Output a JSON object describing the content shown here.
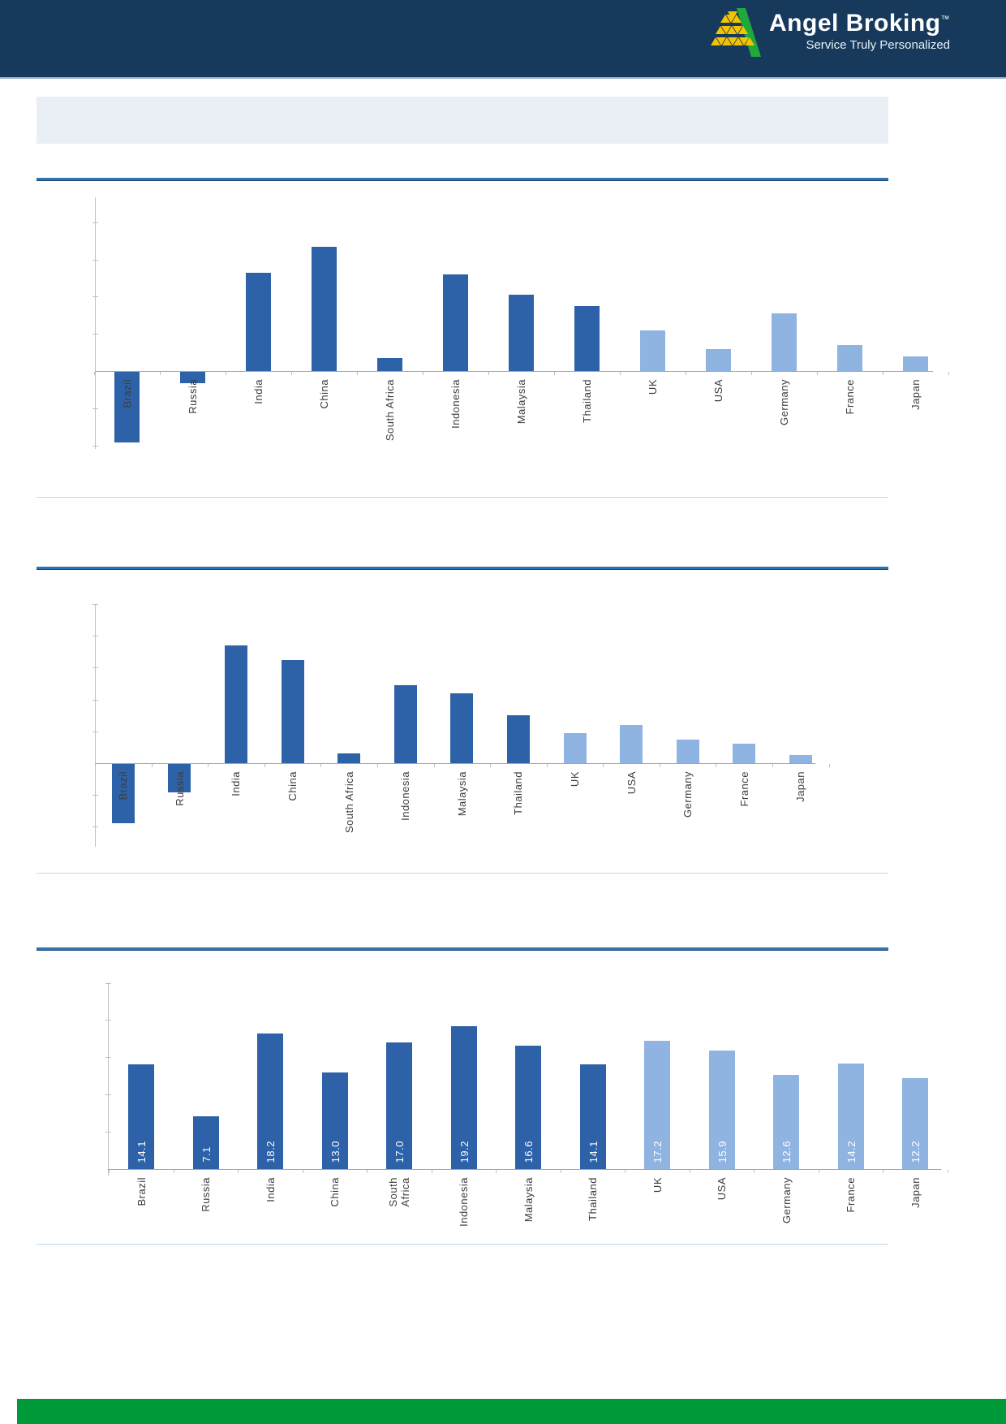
{
  "header": {
    "brand": "Angel Broking",
    "trademark": "™",
    "tagline": "Service Truly Personalized"
  },
  "title_band": {
    "text": ""
  },
  "colors": {
    "header_navy": "#16395C",
    "bar_dark": "#2E62A8",
    "bar_light": "#8FB4E2",
    "rule_blue": "#2E74B5",
    "separator_light": "#BFD7EA",
    "axis_gray": "#BFBFBF",
    "label_gray": "#3D3D3D",
    "value_label": "#FFFFFF",
    "footer_green": "#009A3A",
    "logo_green": "#1FA83D",
    "logo_yellow": "#F5C400",
    "band_fill": "#E9EFF5"
  },
  "chart_data": [
    {
      "type": "bar",
      "title": "",
      "categories": [
        "Brazil",
        "Russia",
        "India",
        "China",
        "South Africa",
        "Indonesia",
        "Malaysia",
        "Thailand",
        "UK",
        "USA",
        "Germany",
        "France",
        "Japan"
      ],
      "values": [
        -3.8,
        -0.6,
        5.3,
        6.7,
        0.7,
        5.2,
        4.1,
        3.5,
        2.2,
        1.2,
        3.1,
        1.4,
        0.8
      ],
      "dark_first_n": 8,
      "ylim": [
        -4.3,
        9.4
      ],
      "gridline_step": 2,
      "y_axis_labels_visible": false,
      "value_labels_visible": false,
      "legend": "none"
    },
    {
      "type": "bar",
      "title": "",
      "categories": [
        "Brazil",
        "Russia",
        "India",
        "China",
        "South Africa",
        "Indonesia",
        "Malaysia",
        "Thailand",
        "UK",
        "USA",
        "Germany",
        "France",
        "Japan"
      ],
      "values": [
        -3.7,
        -1.8,
        7.4,
        6.5,
        0.6,
        4.9,
        4.4,
        3.0,
        1.9,
        2.4,
        1.5,
        1.2,
        0.5
      ],
      "dark_first_n": 8,
      "ylim": [
        -5.3,
        10
      ],
      "gridline_step": 2,
      "y_axis_labels_visible": false,
      "value_labels_visible": false,
      "legend": "none"
    },
    {
      "type": "bar",
      "title": "",
      "categories": [
        "Brazil",
        "Russia",
        "India",
        "China",
        "South Africa",
        "Indonesia",
        "Malaysia",
        "Thailand",
        "UK",
        "USA",
        "Germany",
        "France",
        "Japan"
      ],
      "values": [
        14.1,
        7.1,
        18.2,
        13.0,
        17.0,
        19.2,
        16.6,
        14.1,
        17.2,
        15.9,
        12.6,
        14.2,
        12.2
      ],
      "value_labels": [
        "14.1",
        "7.1",
        "18.2",
        "13.0",
        "17.0",
        "19.2",
        "16.6",
        "14.1",
        "17.2",
        "15.9",
        "12.6",
        "14.2",
        "12.2"
      ],
      "dark_first_n": 8,
      "ylim": [
        0,
        25.2
      ],
      "gridline_step": 5,
      "y_axis_labels_visible": false,
      "value_labels_visible": true,
      "legend": "none"
    }
  ]
}
